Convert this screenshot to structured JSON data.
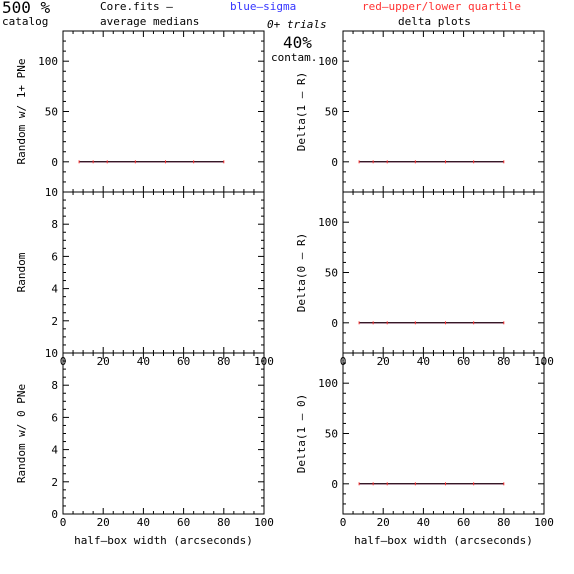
{
  "header": {
    "catalog_pct": "500 %",
    "catalog_label": "catalog",
    "file_label": "Core.fits  –",
    "avg_medians": "average medians",
    "legend_blue": "blue–sigma",
    "legend_red": "red–upper/lower quartile",
    "trials": "0+ trials",
    "contam_pct": "40%",
    "contam_label": "contam.",
    "delta_plots": "delta plots"
  },
  "colors": {
    "median": "#000000",
    "sigma": "#3333ff",
    "quartile": "#ff3333"
  },
  "chart_data": [
    {
      "type": "line",
      "panel": "top-left",
      "ylabel": "Random w/ 1+ PNe",
      "xlabel": "",
      "xlim": [
        0,
        100
      ],
      "ylim": [
        -30,
        130
      ],
      "xticks": [],
      "yticks": [
        0,
        50,
        100
      ],
      "x": [
        8,
        15,
        22,
        36,
        51,
        65,
        80
      ],
      "series": [
        {
          "values": [
            0,
            0,
            0,
            0,
            0,
            0,
            0
          ]
        }
      ]
    },
    {
      "type": "line",
      "panel": "top-right",
      "ylabel": "Delta(1 – R)",
      "xlabel": "",
      "xlim": [
        0,
        100
      ],
      "ylim": [
        -30,
        130
      ],
      "xticks": [],
      "yticks": [
        0,
        50,
        100
      ],
      "x": [
        8,
        15,
        22,
        36,
        51,
        65,
        80
      ],
      "series": [
        {
          "values": [
            0,
            0,
            0,
            0,
            0,
            0,
            0
          ]
        }
      ]
    },
    {
      "type": "line",
      "panel": "middle-left",
      "ylabel": "Random",
      "xlabel": "",
      "xlim": [
        0,
        100
      ],
      "ylim": [
        0,
        10
      ],
      "xticks": [
        0,
        20,
        40,
        60,
        80,
        100
      ],
      "yticks": [
        2,
        4,
        6,
        8,
        10
      ],
      "x": [],
      "series": []
    },
    {
      "type": "line",
      "panel": "middle-right",
      "ylabel": "Delta(0 – R)",
      "xlabel": "",
      "xlim": [
        0,
        100
      ],
      "ylim": [
        -30,
        130
      ],
      "xticks": [
        0,
        20,
        40,
        60,
        80,
        100
      ],
      "yticks": [
        0,
        50,
        100
      ],
      "x": [
        8,
        15,
        22,
        36,
        51,
        65,
        80
      ],
      "series": [
        {
          "values": [
            0,
            0,
            0,
            0,
            0,
            0,
            0
          ]
        }
      ]
    },
    {
      "type": "line",
      "panel": "bottom-left",
      "ylabel": "Random w/ 0 PNe",
      "xlabel": "half–box width (arcseconds)",
      "xlim": [
        0,
        100
      ],
      "ylim": [
        0,
        10
      ],
      "xticks": [
        0,
        20,
        40,
        60,
        80,
        100
      ],
      "yticks": [
        0,
        2,
        4,
        6,
        8,
        10
      ],
      "x": [],
      "series": []
    },
    {
      "type": "line",
      "panel": "bottom-right",
      "ylabel": "Delta(1 – 0)",
      "xlabel": "half–box width (arcseconds)",
      "xlim": [
        0,
        100
      ],
      "ylim": [
        -30,
        130
      ],
      "xticks": [
        0,
        20,
        40,
        60,
        80,
        100
      ],
      "yticks": [
        0,
        50,
        100
      ],
      "x": [
        8,
        15,
        22,
        36,
        51,
        65,
        80
      ],
      "series": [
        {
          "values": [
            0,
            0,
            0,
            0,
            0,
            0,
            0
          ]
        }
      ]
    }
  ]
}
